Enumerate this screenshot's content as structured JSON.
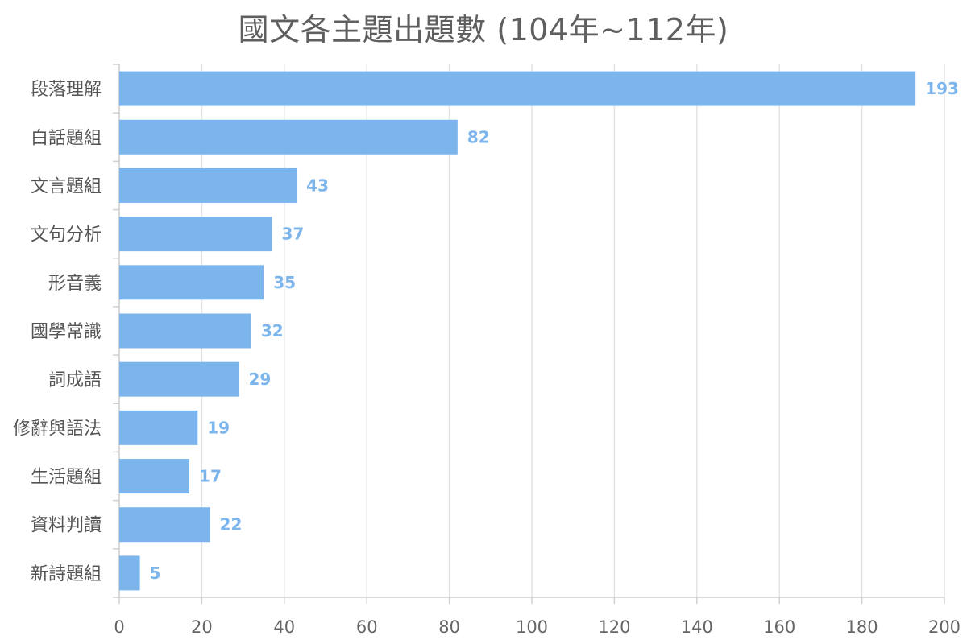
{
  "chart_data": {
    "type": "bar",
    "orientation": "horizontal",
    "title": "國文各主題出題數 (104年~112年)",
    "xlabel": "",
    "ylabel": "",
    "categories": [
      "段落理解",
      "白話題組",
      "文言題組",
      "文句分析",
      "形音義",
      "國學常識",
      "詞成語",
      "修辭與語法",
      "生活題組",
      "資料判讀",
      "新詩題組"
    ],
    "values": [
      193,
      82,
      43,
      37,
      35,
      32,
      29,
      19,
      17,
      22,
      5
    ],
    "xlim": [
      0,
      200
    ],
    "xticks": [
      0,
      20,
      40,
      60,
      80,
      100,
      120,
      140,
      160,
      180,
      200
    ],
    "grid": true,
    "legend": "none",
    "bar_color": "#7cb5ec",
    "label_color": "#7cb5ec"
  }
}
